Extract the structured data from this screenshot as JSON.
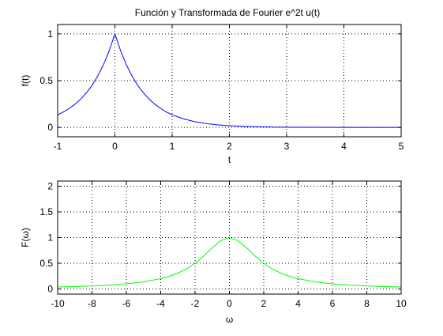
{
  "window": {
    "background": "#ffffff"
  },
  "chart_data": [
    {
      "type": "line",
      "title": "Función y Transformada de Fourier e^2t  u(t)",
      "xlabel": "t",
      "ylabel": "f(t)",
      "xlim": [
        -1,
        5
      ],
      "ylim": [
        -0.1,
        1.1
      ],
      "xticks": [
        -1,
        0,
        1,
        2,
        3,
        4,
        5
      ],
      "yticks": [
        0,
        0.5,
        1
      ],
      "xtick_labels": [
        "-1",
        "0",
        "1",
        "2",
        "3",
        "4",
        "5"
      ],
      "ytick_labels": [
        "0",
        "0.5",
        "1"
      ],
      "grid": true,
      "series": [
        {
          "color": "#0000ff",
          "x": [
            -1,
            -0.9,
            -0.8,
            -0.7,
            -0.6,
            -0.5,
            -0.4,
            -0.3,
            -0.2,
            -0.1,
            0,
            0.1,
            0.2,
            0.3,
            0.4,
            0.5,
            0.6,
            0.7,
            0.8,
            0.9,
            1,
            1.2,
            1.4,
            1.6,
            1.8,
            2,
            2.25,
            2.5,
            2.75,
            3,
            3.5,
            4,
            4.5,
            5
          ],
          "y": [
            0.135,
            0.165,
            0.202,
            0.247,
            0.301,
            0.368,
            0.449,
            0.549,
            0.67,
            0.819,
            1,
            0.819,
            0.67,
            0.549,
            0.449,
            0.368,
            0.301,
            0.247,
            0.202,
            0.165,
            0.135,
            0.091,
            0.061,
            0.041,
            0.027,
            0.018,
            0.011,
            0.007,
            0.004,
            0.002,
            0.001,
            0.0,
            0.0,
            0.0
          ]
        }
      ]
    },
    {
      "type": "line",
      "title": "",
      "xlabel": "ω",
      "ylabel": "F(ω)",
      "xlim": [
        -10,
        10
      ],
      "ylim": [
        -0.1,
        2.1
      ],
      "xticks": [
        -10,
        -8,
        -6,
        -4,
        -2,
        0,
        2,
        4,
        6,
        8,
        10
      ],
      "yticks": [
        0,
        0.5,
        1,
        1.5,
        2
      ],
      "xtick_labels": [
        "-10",
        "-8",
        "-6",
        "-4",
        "-2",
        "0",
        "2",
        "4",
        "6",
        "8",
        "10"
      ],
      "ytick_labels": [
        "0",
        "0.5",
        "1",
        "1.5",
        "2"
      ],
      "grid": true,
      "series": [
        {
          "color": "#00ff00",
          "x": [
            -10,
            -9,
            -8,
            -7,
            -6,
            -5,
            -4,
            -3.5,
            -3,
            -2.5,
            -2,
            -1.5,
            -1,
            -0.5,
            0,
            0.5,
            1,
            1.5,
            2,
            2.5,
            3,
            3.5,
            4,
            5,
            6,
            7,
            8,
            9,
            10
          ],
          "y": [
            0.038,
            0.047,
            0.059,
            0.075,
            0.1,
            0.138,
            0.2,
            0.246,
            0.308,
            0.39,
            0.5,
            0.64,
            0.8,
            0.941,
            1,
            0.941,
            0.8,
            0.64,
            0.5,
            0.39,
            0.308,
            0.246,
            0.2,
            0.138,
            0.1,
            0.075,
            0.059,
            0.047,
            0.038
          ]
        }
      ]
    }
  ]
}
